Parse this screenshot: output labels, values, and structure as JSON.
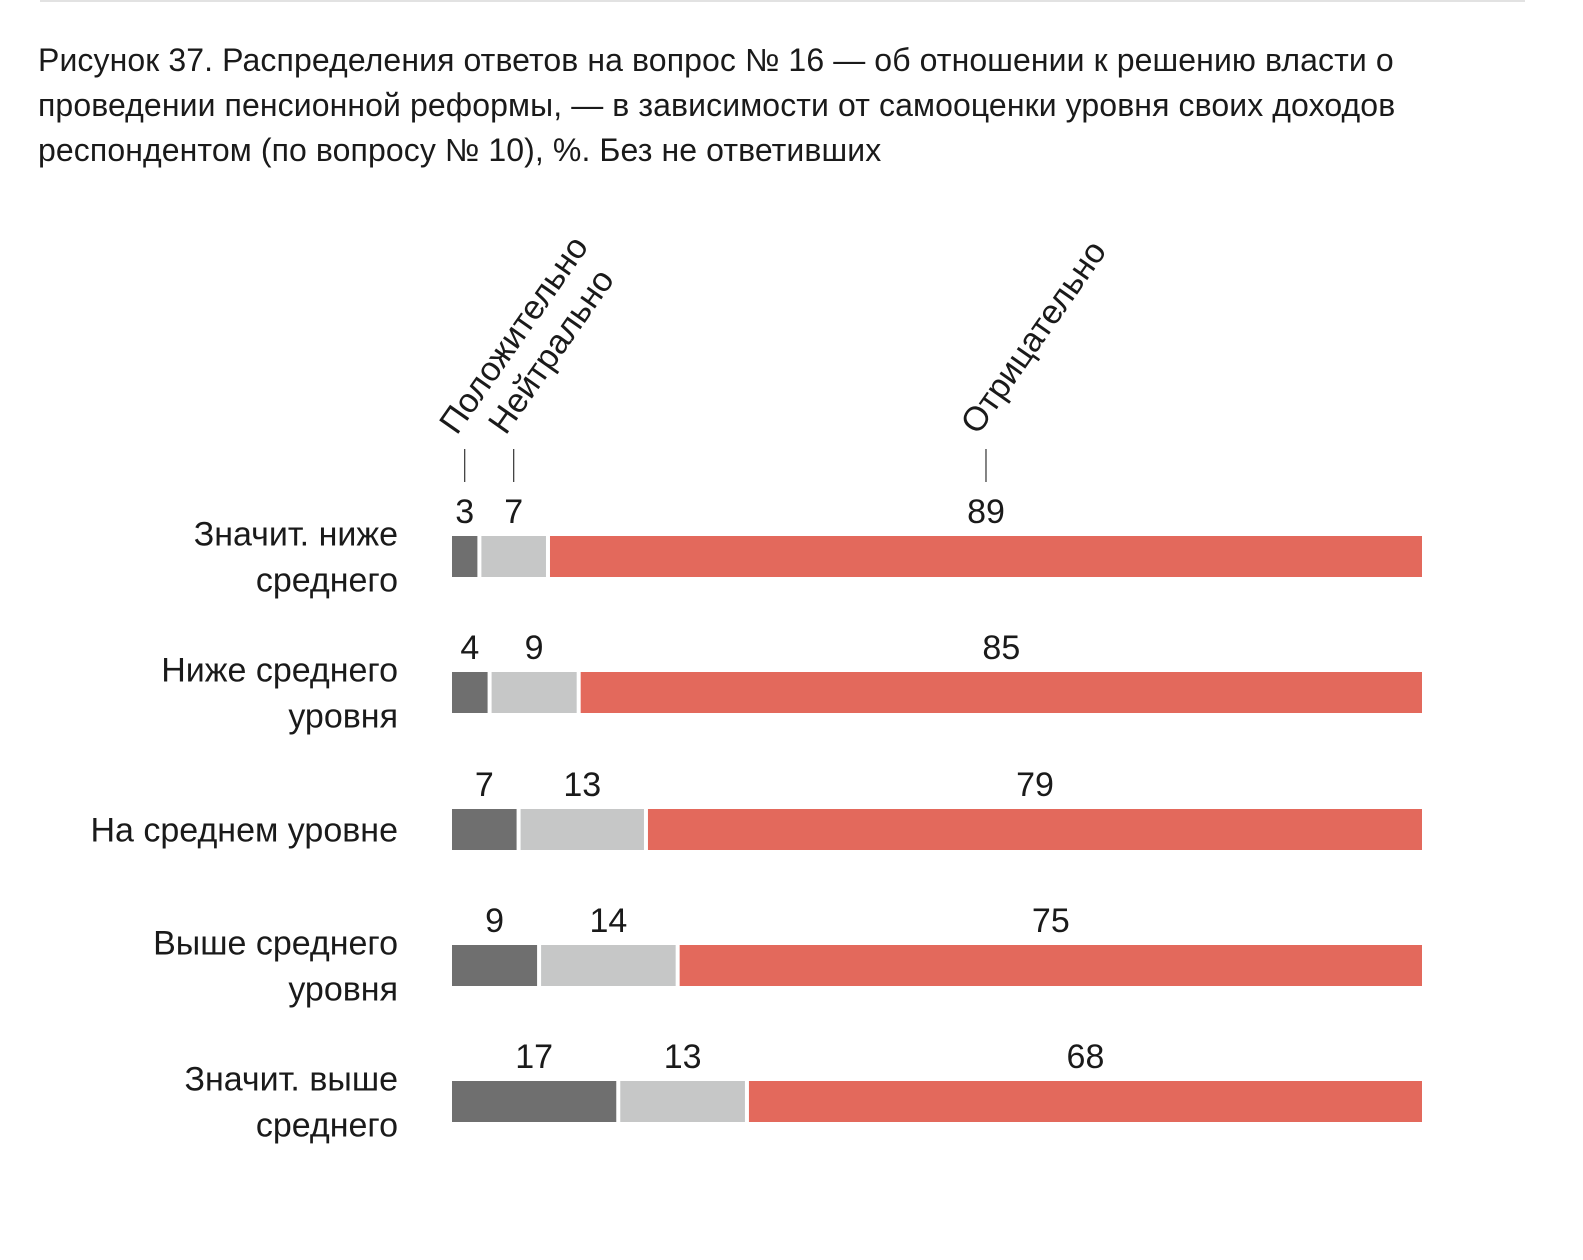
{
  "caption": "Рисунок 37. Распределения ответов на вопрос № 16 — об отношении к решению власти о проведении пенсионной реформы, — в зависимости от самооценки уровня своих доходов респондентом (по вопросу № 10), %. Без не ответивших",
  "chart_data": {
    "type": "bar",
    "orientation": "horizontal",
    "stacked": true,
    "title": "Рисунок 37. Распределения ответов на вопрос № 16 — об отношении к решению власти о проведении пенсионной реформы, — в зависимости от самооценки уровня своих доходов респондентом (по вопросу № 10), %. Без не ответивших",
    "categories": [
      [
        "Значит. ниже",
        "среднего"
      ],
      [
        "Ниже среднего",
        "уровня"
      ],
      [
        "На среднем уровне"
      ],
      [
        "Выше среднего",
        "уровня"
      ],
      [
        "Значит. выше",
        "среднего"
      ]
    ],
    "series": [
      {
        "name": "Положительно",
        "values": [
          3,
          4,
          7,
          9,
          17
        ],
        "color": "#6f6f6f"
      },
      {
        "name": "Нейтрально",
        "values": [
          7,
          9,
          13,
          14,
          13
        ],
        "color": "#c6c7c7"
      },
      {
        "name": "Отрицательно",
        "values": [
          89,
          85,
          79,
          75,
          68
        ],
        "color": "#e3695c"
      }
    ],
    "legend": "rotated labels above the first bar",
    "grid": false,
    "axes": false
  }
}
